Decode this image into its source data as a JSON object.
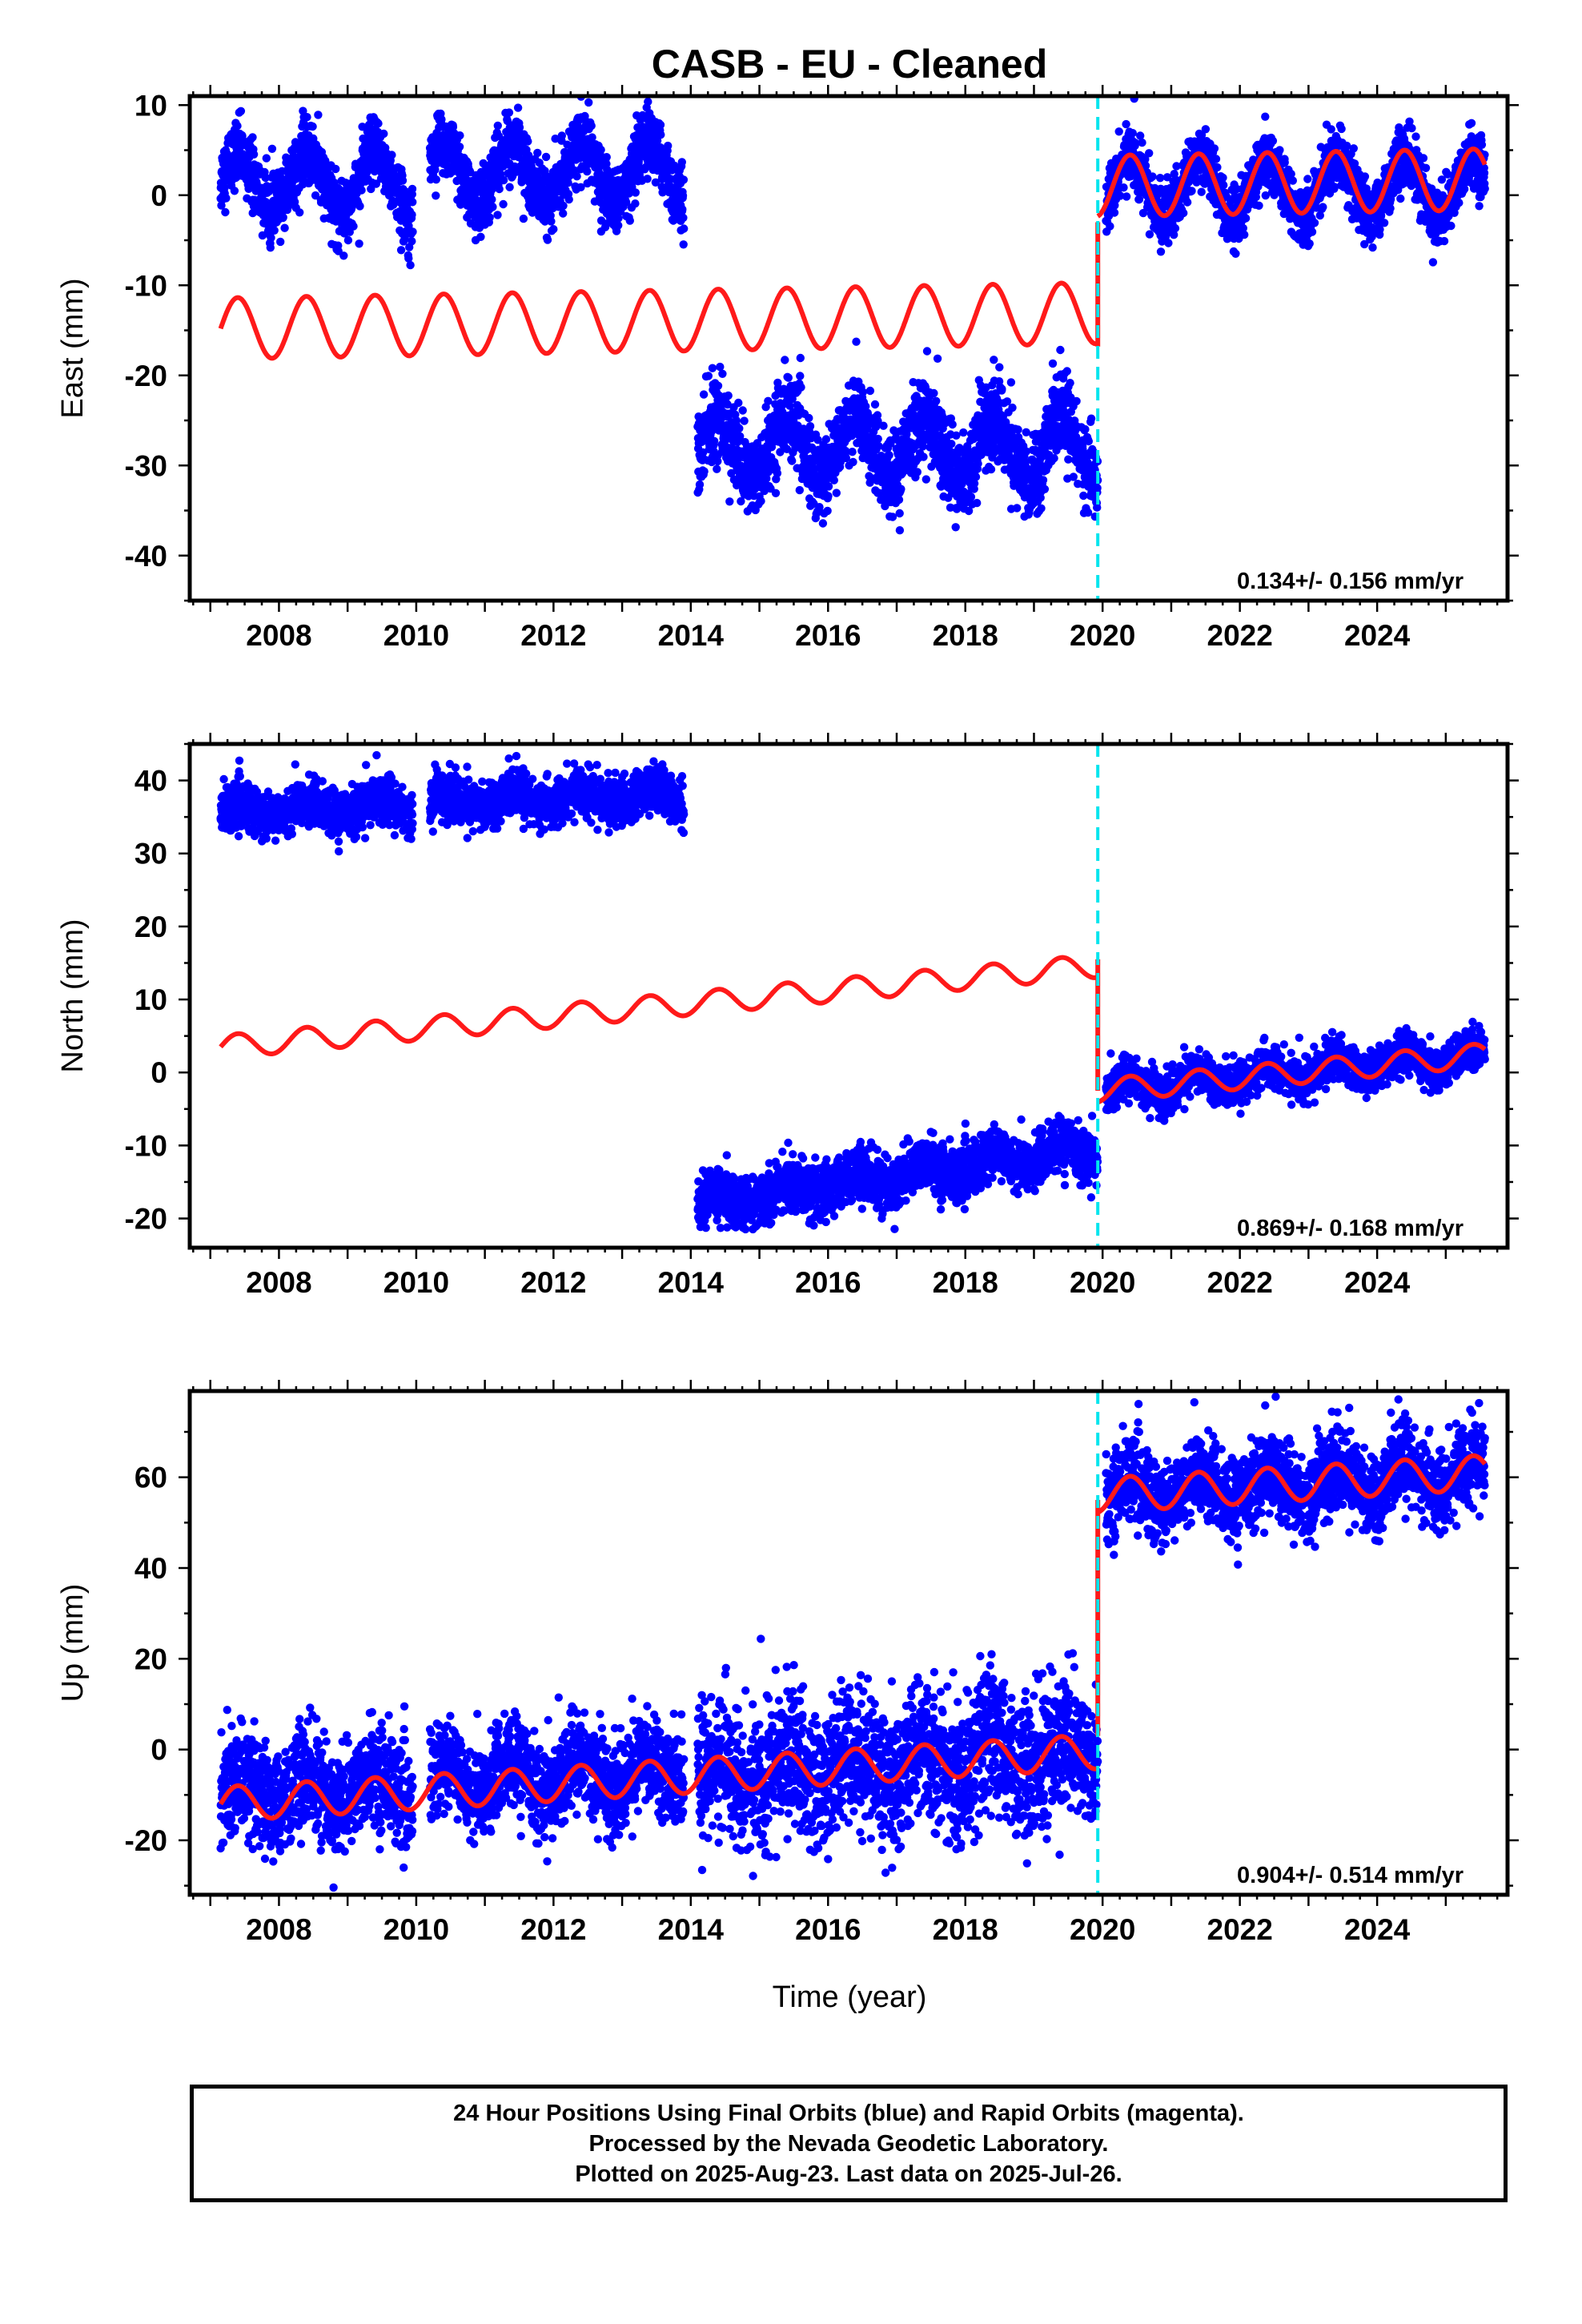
{
  "title": "CASB  - EU - Cleaned",
  "xlabel": "Time (year)",
  "footer": {
    "line1": "24 Hour Positions Using Final Orbits (blue) and Rapid Orbits (magenta).",
    "line2": "Processed by the Nevada Geodetic Laboratory.",
    "line3": "Plotted on 2025-Aug-23. Last data on 2025-Jul-26."
  },
  "colors": {
    "final_orbits": "#0000ff",
    "model": "#ff1a1a",
    "offset_line": "#00e5ee",
    "frame": "#000000"
  },
  "chart_data": [
    {
      "type": "scatter",
      "component": "East",
      "ylabel": "East (mm)",
      "xlim": [
        2006.7,
        2025.9
      ],
      "ylim": [
        -45,
        11
      ],
      "xticks": [
        2008,
        2010,
        2012,
        2014,
        2016,
        2018,
        2020,
        2022,
        2024
      ],
      "yticks": [
        -40,
        -30,
        -20,
        -10,
        0,
        10
      ],
      "rate": "0.134+/- 0.156 mm/yr",
      "offset_epoch": 2019.93,
      "data_segments": [
        {
          "x_start": 2007.15,
          "x_end": 2009.95,
          "base": 1.5,
          "trend": 0.0,
          "amplitude": 3.2,
          "spread": 1.8
        },
        {
          "x_start": 2010.2,
          "x_end": 2013.9,
          "base": 2.5,
          "trend": 0.0,
          "amplitude": 3.2,
          "spread": 1.8
        },
        {
          "x_start": 2014.1,
          "x_end": 2019.93,
          "base": -28.0,
          "trend": 0.0,
          "amplitude": 3.5,
          "spread": 2.3
        },
        {
          "x_start": 2020.05,
          "x_end": 2025.57,
          "base": 0.8,
          "trend": 0.0,
          "amplitude": 3.3,
          "spread": 1.6
        }
      ],
      "model": {
        "pre_offset": {
          "x_start": 2007.15,
          "x_end": 2019.93,
          "start_value": -14.8,
          "trend": 0.134,
          "amplitude": 3.4
        },
        "post_offset": {
          "x_start": 2019.93,
          "x_end": 2025.57,
          "start_value": 1.0,
          "trend": 0.134,
          "amplitude": 3.4
        },
        "jump": [
          -16.8,
          -3.0
        ]
      }
    },
    {
      "type": "scatter",
      "component": "North",
      "ylabel": "North (mm)",
      "xlim": [
        2006.7,
        2025.9
      ],
      "ylim": [
        -24,
        45
      ],
      "xticks": [
        2008,
        2010,
        2012,
        2014,
        2016,
        2018,
        2020,
        2022,
        2024
      ],
      "yticks": [
        -20,
        -10,
        0,
        10,
        20,
        30,
        40
      ],
      "rate": "0.869+/- 0.168 mm/yr",
      "offset_epoch": 2019.93,
      "data_segments": [
        {
          "x_start": 2007.15,
          "x_end": 2009.95,
          "base": 35.5,
          "trend": 0.4,
          "amplitude": 1.0,
          "spread": 1.6
        },
        {
          "x_start": 2010.2,
          "x_end": 2013.9,
          "base": 37.0,
          "trend": 0.25,
          "amplitude": 1.0,
          "spread": 1.6
        },
        {
          "x_start": 2014.1,
          "x_end": 2019.93,
          "base": -18.0,
          "trend": 1.3,
          "amplitude": 1.2,
          "spread": 1.8
        },
        {
          "x_start": 2020.05,
          "x_end": 2025.57,
          "base": -2.5,
          "trend": 0.9,
          "amplitude": 1.3,
          "spread": 1.4
        }
      ],
      "model": {
        "pre_offset": {
          "x_start": 2007.15,
          "x_end": 2019.93,
          "start_value": 3.5,
          "trend": 0.869,
          "amplitude": 1.6
        },
        "post_offset": {
          "x_start": 2019.93,
          "x_end": 2025.57,
          "start_value": -2.5,
          "trend": 0.869,
          "amplitude": 1.6
        },
        "jump": [
          15.5,
          -2.5
        ]
      }
    },
    {
      "type": "scatter",
      "component": "Up",
      "ylabel": "Up (mm)",
      "xlim": [
        2006.7,
        2025.9
      ],
      "ylim": [
        -32,
        79
      ],
      "xticks": [
        2008,
        2010,
        2012,
        2014,
        2016,
        2018,
        2020,
        2022,
        2024
      ],
      "yticks": [
        -20,
        0,
        20,
        40,
        60
      ],
      "rate": "0.904+/- 0.514 mm/yr",
      "offset_epoch": 2019.93,
      "data_segments": [
        {
          "x_start": 2007.15,
          "x_end": 2009.95,
          "base": -10.0,
          "trend": 0.6,
          "amplitude": 3.5,
          "spread": 5.5
        },
        {
          "x_start": 2010.2,
          "x_end": 2013.9,
          "base": -7.0,
          "trend": 0.6,
          "amplitude": 3.5,
          "spread": 5.0
        },
        {
          "x_start": 2014.1,
          "x_end": 2019.93,
          "base": -6.0,
          "trend": 0.9,
          "amplitude": 3.5,
          "spread": 7.5
        },
        {
          "x_start": 2020.05,
          "x_end": 2025.57,
          "base": 56.0,
          "trend": 0.9,
          "amplitude": 3.5,
          "spread": 4.5
        }
      ],
      "model": {
        "pre_offset": {
          "x_start": 2007.15,
          "x_end": 2019.93,
          "start_value": -12.0,
          "trend": 0.904,
          "amplitude": 3.8
        },
        "post_offset": {
          "x_start": 2019.93,
          "x_end": 2025.57,
          "start_value": 56.0,
          "trend": 0.904,
          "amplitude": 3.8
        },
        "jump": [
          3.0,
          55.0
        ]
      }
    }
  ]
}
